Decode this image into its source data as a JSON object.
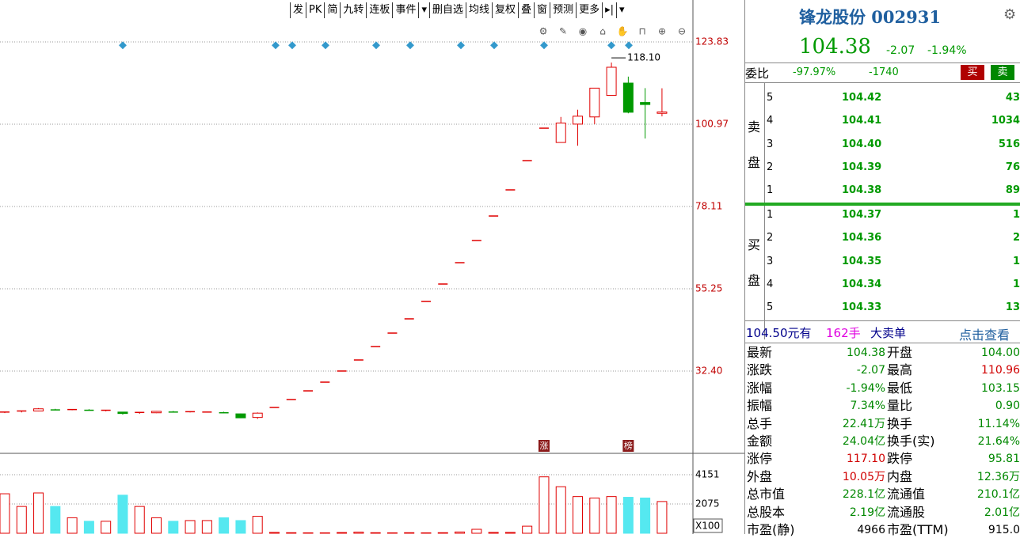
{
  "toolbar": [
    "发",
    "PK",
    "简",
    "九转",
    "连板",
    "事件",
    "▾",
    "删自选",
    "均线",
    "复权",
    "叠",
    "窗",
    "预测",
    "更多",
    "▸|",
    "▾"
  ],
  "kline": {
    "type": "candlestick",
    "ylim": [
      9.53,
      128.89
    ],
    "yticks": [
      {
        "value": 32.4,
        "label": "32.40"
      },
      55.25,
      78.11,
      100.97,
      123.83
    ],
    "candles": [
      {
        "open": 20.8,
        "high": 21.1,
        "low": 20.7,
        "close": 21.0
      },
      {
        "open": 21.0,
        "high": 21.4,
        "low": 20.9,
        "close": 21.3
      },
      {
        "open": 21.3,
        "high": 22.1,
        "low": 21.2,
        "close": 21.9
      },
      {
        "open": 21.8,
        "high": 21.9,
        "low": 21.5,
        "close": 21.6
      },
      {
        "open": 21.6,
        "high": 21.8,
        "low": 21.5,
        "close": 21.7
      },
      {
        "open": 21.7,
        "high": 21.8,
        "low": 21.4,
        "close": 21.5
      },
      {
        "open": 21.5,
        "high": 21.6,
        "low": 21.2,
        "close": 21.5
      },
      {
        "open": 21.0,
        "high": 21.0,
        "low": 20.3,
        "close": 20.6
      },
      {
        "open": 20.6,
        "high": 21.0,
        "low": 20.5,
        "close": 20.9
      },
      {
        "open": 20.8,
        "high": 21.3,
        "low": 20.7,
        "close": 21.2
      },
      {
        "open": 21.2,
        "high": 21.3,
        "low": 20.9,
        "close": 21.0
      },
      {
        "open": 21.0,
        "high": 21.2,
        "low": 20.9,
        "close": 21.1
      },
      {
        "open": 21.0,
        "high": 21.1,
        "low": 20.9,
        "close": 21.0
      },
      {
        "open": 21.0,
        "high": 21.1,
        "low": 20.7,
        "close": 20.8
      },
      {
        "open": 20.5,
        "high": 20.6,
        "low": 19.3,
        "close": 19.4
      },
      {
        "open": 19.5,
        "high": 20.9,
        "low": 19.1,
        "close": 20.7
      },
      {
        "open": 22.28,
        "high": 22.28,
        "low": 22.28,
        "close": 22.28
      },
      {
        "open": 24.48,
        "high": 24.48,
        "low": 24.48,
        "close": 24.48
      },
      {
        "open": 26.89,
        "high": 26.89,
        "low": 26.89,
        "close": 26.89
      },
      {
        "open": 29.31,
        "high": 29.31,
        "low": 29.31,
        "close": 29.31
      },
      {
        "open": 32.4,
        "high": 32.4,
        "low": 32.4,
        "close": 32.4
      },
      {
        "open": 35.47,
        "high": 35.47,
        "low": 35.47,
        "close": 35.47
      },
      {
        "open": 39.2,
        "high": 39.2,
        "low": 39.2,
        "close": 39.2
      },
      {
        "open": 42.94,
        "high": 42.94,
        "low": 42.94,
        "close": 42.94
      },
      {
        "open": 46.9,
        "high": 46.9,
        "low": 46.9,
        "close": 46.9
      },
      {
        "open": 51.73,
        "high": 51.73,
        "low": 51.73,
        "close": 51.73
      },
      {
        "open": 56.57,
        "high": 56.57,
        "low": 56.57,
        "close": 56.57
      },
      {
        "open": 62.5,
        "high": 62.5,
        "low": 62.5,
        "close": 62.5
      },
      {
        "open": 68.66,
        "high": 68.66,
        "low": 68.66,
        "close": 68.66
      },
      {
        "open": 75.47,
        "high": 75.47,
        "low": 75.47,
        "close": 75.47
      },
      {
        "open": 82.73,
        "high": 82.73,
        "low": 82.73,
        "close": 82.73
      },
      {
        "open": 90.86,
        "high": 90.86,
        "low": 90.86,
        "close": 90.86
      },
      {
        "open": 99.87,
        "high": 99.87,
        "low": 99.87,
        "close": 99.87
      },
      {
        "open": 95.9,
        "high": 103.0,
        "low": 95.9,
        "close": 101.3
      },
      {
        "open": 101.0,
        "high": 105.0,
        "low": 95.0,
        "close": 103.2
      },
      {
        "open": 103.0,
        "high": 111.0,
        "low": 101.0,
        "close": 111.0
      },
      {
        "open": 109.0,
        "high": 118.1,
        "low": 109.0,
        "close": 116.8
      },
      {
        "open": 112.4,
        "high": 114.2,
        "low": 104.0,
        "close": 104.3
      },
      {
        "open": 107.0,
        "high": 111.0,
        "low": 97.0,
        "close": 106.45
      },
      {
        "open": 104.0,
        "high": 110.96,
        "low": 103.15,
        "close": 104.38
      }
    ],
    "max_label": "118.10",
    "max_index": 36,
    "markers": [
      {
        "index": 32,
        "label": "涨"
      },
      {
        "index": 37,
        "label": "榜"
      }
    ]
  },
  "volume": {
    "ylim": [
      0,
      5554
    ],
    "yticks": [
      2075,
      4151
    ],
    "unit": "X100",
    "values": [
      2800,
      1900,
      2860,
      1900,
      1100,
      850,
      850,
      2700,
      1900,
      1100,
      850,
      900,
      900,
      1100,
      900,
      1200,
      60,
      40,
      30,
      30,
      50,
      80,
      40,
      30,
      40,
      30,
      40,
      90,
      280,
      60,
      60,
      500,
      4000,
      3300,
      2600,
      2500,
      2600,
      2550,
      2500,
      2250
    ]
  },
  "quote": {
    "title": "锋龙股份 002931",
    "price": "104.38",
    "change": "-2.07",
    "change_pct": "-1.94%",
    "ratio_label": "委比",
    "ratio": "-97.97%",
    "ratio_diff": "-1740",
    "buy_btn": "买",
    "sell_btn": "卖",
    "sell_side": [
      "卖",
      "盘"
    ],
    "buy_side": [
      "买",
      "盘"
    ],
    "asks": [
      {
        "level": "5",
        "price": "104.42",
        "volume": "43"
      },
      {
        "level": "4",
        "price": "104.41",
        "volume": "1034"
      },
      {
        "level": "3",
        "price": "104.40",
        "volume": "516"
      },
      {
        "level": "2",
        "price": "104.39",
        "volume": "76"
      },
      {
        "level": "1",
        "price": "104.38",
        "volume": "89"
      }
    ],
    "bids": [
      {
        "level": "1",
        "price": "104.37",
        "volume": "1"
      },
      {
        "level": "2",
        "price": "104.36",
        "volume": "2"
      },
      {
        "level": "3",
        "price": "104.35",
        "volume": "1"
      },
      {
        "level": "4",
        "price": "104.34",
        "volume": "1"
      },
      {
        "level": "5",
        "price": "104.33",
        "volume": "13"
      }
    ],
    "trade": {
      "price": "104.50元有",
      "lots": "162手",
      "kind": "大卖单",
      "link": "点击查看"
    },
    "stats": [
      {
        "l1": "最新",
        "v1": "104.38",
        "c1": "#008800",
        "l2": "开盘",
        "v2": "104.00",
        "c2": "#008800"
      },
      {
        "l1": "涨跌",
        "v1": "-2.07",
        "c1": "#008800",
        "l2": "最高",
        "v2": "110.96",
        "c2": "#d00000"
      },
      {
        "l1": "涨幅",
        "v1": "-1.94%",
        "c1": "#008800",
        "l2": "最低",
        "v2": "103.15",
        "c2": "#008800"
      },
      {
        "l1": "振幅",
        "v1": "7.34%",
        "c1": "#008800",
        "l2": "量比",
        "v2": "0.90",
        "c2": "#008800"
      },
      {
        "l1": "总手",
        "v1": "22.41万",
        "c1": "#008800",
        "l2": "换手",
        "v2": "11.14%",
        "c2": "#008800"
      },
      {
        "l1": "金额",
        "v1": "24.04亿",
        "c1": "#008800",
        "l2": "换手(实)",
        "v2": "21.64%",
        "c2": "#008800"
      },
      {
        "l1": "涨停",
        "v1": "117.10",
        "c1": "#d00000",
        "l2": "跌停",
        "v2": "95.81",
        "c2": "#008800"
      },
      {
        "l1": "外盘",
        "v1": "10.05万",
        "c1": "#d00000",
        "l2": "内盘",
        "v2": "12.36万",
        "c2": "#008800"
      },
      {
        "l1": "总市值",
        "v1": "228.1亿",
        "c1": "#008800",
        "l2": "流通值",
        "v2": "210.1亿",
        "c2": "#008800"
      },
      {
        "l1": "总股本",
        "v1": "2.19亿",
        "c1": "#008800",
        "l2": "流通股",
        "v2": "2.01亿",
        "c2": "#008800"
      },
      {
        "l1": "市盈(静)",
        "v1": "4966",
        "c1": "#000000",
        "l2": "市盈(TTM)",
        "v2": "915.0",
        "c2": "#000000"
      }
    ]
  }
}
